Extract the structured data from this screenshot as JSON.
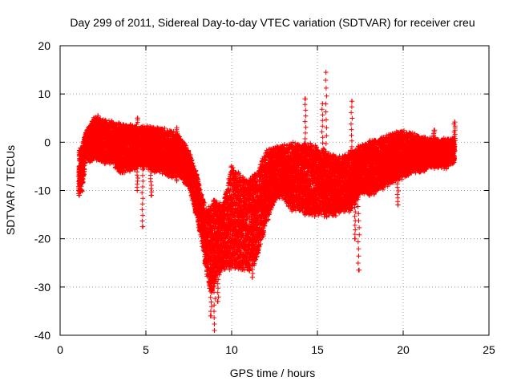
{
  "chart_data": {
    "type": "scatter",
    "title": "Day 299 of 2011, Sidereal Day-to-day VTEC variation (SDTVAR) for receiver creu",
    "xlabel": "GPS time / hours",
    "ylabel": "SDTVAR / TECUs",
    "xlim": [
      0,
      25
    ],
    "ylim": [
      -40,
      20
    ],
    "xticks": [
      0,
      5,
      10,
      15,
      20,
      25
    ],
    "yticks": [
      -40,
      -30,
      -20,
      -10,
      0,
      10,
      20
    ],
    "grid": true,
    "legend": "none",
    "marker": "+",
    "color": "#ff0000",
    "series": [
      {
        "name": "SDTVAR",
        "upper_envelope": [
          [
            1.1,
            -2
          ],
          [
            1.3,
            -1
          ],
          [
            1.5,
            2
          ],
          [
            1.8,
            4
          ],
          [
            2.0,
            5
          ],
          [
            2.5,
            4.5
          ],
          [
            3.0,
            4
          ],
          [
            3.5,
            3.5
          ],
          [
            4.0,
            3.5
          ],
          [
            4.5,
            3
          ],
          [
            5.0,
            3
          ],
          [
            5.5,
            3
          ],
          [
            6.0,
            2.5
          ],
          [
            6.5,
            2
          ],
          [
            7.0,
            1
          ],
          [
            7.5,
            -2
          ],
          [
            8.0,
            -7
          ],
          [
            8.5,
            -14
          ],
          [
            8.8,
            -13
          ],
          [
            9.0,
            -12
          ],
          [
            9.5,
            -13
          ],
          [
            10.0,
            -5
          ],
          [
            10.5,
            -7
          ],
          [
            11.0,
            -8
          ],
          [
            11.5,
            -6
          ],
          [
            12.0,
            -2
          ],
          [
            12.5,
            -1
          ],
          [
            13.0,
            -1
          ],
          [
            13.5,
            -0.5
          ],
          [
            14.0,
            -0.5
          ],
          [
            14.5,
            -0.5
          ],
          [
            15.0,
            -1
          ],
          [
            15.5,
            -2
          ],
          [
            16.0,
            -3
          ],
          [
            16.5,
            -3
          ],
          [
            17.0,
            -2
          ],
          [
            17.5,
            -1
          ],
          [
            18.0,
            0
          ],
          [
            18.5,
            0.5
          ],
          [
            19.0,
            1
          ],
          [
            19.5,
            2
          ],
          [
            20.0,
            2
          ],
          [
            20.5,
            1.5
          ],
          [
            21.0,
            1
          ],
          [
            21.5,
            0.5
          ],
          [
            22.0,
            0.5
          ],
          [
            22.5,
            0.5
          ],
          [
            23.0,
            0.5
          ]
        ],
        "lower_envelope": [
          [
            1.1,
            -10
          ],
          [
            1.3,
            -10
          ],
          [
            1.5,
            -3
          ],
          [
            1.8,
            -4
          ],
          [
            2.0,
            -3
          ],
          [
            2.5,
            -4
          ],
          [
            3.0,
            -4
          ],
          [
            3.5,
            -6
          ],
          [
            4.0,
            -6
          ],
          [
            4.5,
            -5
          ],
          [
            5.0,
            -5
          ],
          [
            5.5,
            -6
          ],
          [
            6.0,
            -6
          ],
          [
            6.5,
            -7
          ],
          [
            7.0,
            -7
          ],
          [
            7.5,
            -9
          ],
          [
            8.0,
            -16
          ],
          [
            8.5,
            -26
          ],
          [
            8.8,
            -32
          ],
          [
            9.0,
            -29
          ],
          [
            9.5,
            -26
          ],
          [
            10.0,
            -26
          ],
          [
            10.5,
            -26
          ],
          [
            11.0,
            -27
          ],
          [
            11.5,
            -24
          ],
          [
            12.0,
            -17
          ],
          [
            12.5,
            -12
          ],
          [
            13.0,
            -11
          ],
          [
            13.5,
            -14
          ],
          [
            14.0,
            -14
          ],
          [
            14.5,
            -15
          ],
          [
            15.0,
            -15
          ],
          [
            15.5,
            -15
          ],
          [
            16.0,
            -15
          ],
          [
            16.5,
            -14
          ],
          [
            17.0,
            -14
          ],
          [
            17.5,
            -10
          ],
          [
            18.0,
            -11
          ],
          [
            18.5,
            -10
          ],
          [
            19.0,
            -9
          ],
          [
            19.5,
            -8
          ],
          [
            20.0,
            -7
          ],
          [
            20.5,
            -6
          ],
          [
            21.0,
            -6
          ],
          [
            21.5,
            -5
          ],
          [
            22.0,
            -5
          ],
          [
            22.5,
            -5
          ],
          [
            23.0,
            -4
          ]
        ],
        "spikes": [
          [
            1.1,
            -11
          ],
          [
            2.2,
            5.5
          ],
          [
            4.5,
            -10
          ],
          [
            4.5,
            5
          ],
          [
            4.8,
            -17.5
          ],
          [
            5.3,
            -11
          ],
          [
            6.8,
            3
          ],
          [
            6.8,
            -8
          ],
          [
            8.8,
            -36
          ],
          [
            9.0,
            -39
          ],
          [
            9.2,
            -33
          ],
          [
            10.5,
            -19
          ],
          [
            11.2,
            -28
          ],
          [
            14.3,
            9
          ],
          [
            14.5,
            -15
          ],
          [
            15.5,
            14.5
          ],
          [
            15.3,
            8
          ],
          [
            17.0,
            8.5
          ],
          [
            17.2,
            -20
          ],
          [
            17.4,
            -26.5
          ],
          [
            19.7,
            -13
          ],
          [
            21.8,
            2.5
          ],
          [
            23.0,
            4.2
          ]
        ],
        "noise_amplitude": 1.2
      }
    ]
  }
}
